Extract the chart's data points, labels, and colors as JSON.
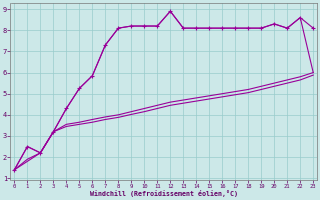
{
  "xlabel": "Windchill (Refroidissement éolien,°C)",
  "background_color": "#cce8e8",
  "grid_color": "#99cccc",
  "line_color": "#990099",
  "xlim": [
    0,
    23
  ],
  "ylim": [
    1,
    9
  ],
  "xticks": [
    0,
    1,
    2,
    3,
    4,
    5,
    6,
    7,
    8,
    9,
    10,
    11,
    12,
    13,
    14,
    15,
    16,
    17,
    18,
    19,
    20,
    21,
    22,
    23
  ],
  "yticks": [
    1,
    2,
    3,
    4,
    5,
    6,
    7,
    8,
    9
  ],
  "curve1_x": [
    0,
    1,
    2,
    3,
    4,
    5,
    6,
    7,
    8,
    9,
    10,
    11,
    12,
    13,
    14,
    15,
    16,
    17,
    18,
    19,
    20,
    21,
    22,
    23
  ],
  "curve1_y": [
    1.4,
    2.5,
    2.2,
    3.2,
    4.3,
    5.25,
    5.85,
    7.3,
    8.1,
    8.2,
    8.2,
    8.2,
    8.9,
    8.1,
    8.1,
    8.1,
    8.1,
    8.1,
    8.1,
    8.1,
    8.3,
    8.1,
    8.6,
    8.1
  ],
  "curve2_x": [
    0,
    1,
    2,
    3,
    4,
    5,
    6,
    7,
    8,
    9,
    10,
    11,
    12,
    13,
    14,
    15,
    16,
    17,
    18,
    19,
    20,
    21,
    22,
    23
  ],
  "curve2_y": [
    1.4,
    2.5,
    2.2,
    3.2,
    4.3,
    5.25,
    5.85,
    7.3,
    8.1,
    8.2,
    8.2,
    8.2,
    8.9,
    8.1,
    8.1,
    8.1,
    8.1,
    8.1,
    8.1,
    8.1,
    8.3,
    8.1,
    8.6,
    6.0
  ],
  "curve3_x": [
    0,
    1,
    2,
    3,
    4,
    5,
    6,
    7,
    8,
    9,
    10,
    11,
    12,
    13,
    14,
    15,
    16,
    17,
    18,
    19,
    20,
    21,
    22,
    23
  ],
  "curve3_y": [
    1.4,
    1.9,
    2.2,
    3.2,
    3.55,
    3.65,
    3.78,
    3.9,
    4.0,
    4.15,
    4.3,
    4.45,
    4.6,
    4.7,
    4.8,
    4.9,
    5.0,
    5.1,
    5.2,
    5.35,
    5.5,
    5.65,
    5.8,
    6.0
  ],
  "curve4_x": [
    0,
    1,
    2,
    3,
    4,
    5,
    6,
    7,
    8,
    9,
    10,
    11,
    12,
    13,
    14,
    15,
    16,
    17,
    18,
    19,
    20,
    21,
    22,
    23
  ],
  "curve4_y": [
    1.4,
    1.8,
    2.2,
    3.2,
    3.45,
    3.55,
    3.65,
    3.78,
    3.88,
    4.02,
    4.15,
    4.3,
    4.45,
    4.55,
    4.65,
    4.75,
    4.85,
    4.95,
    5.05,
    5.2,
    5.35,
    5.5,
    5.65,
    5.88
  ]
}
